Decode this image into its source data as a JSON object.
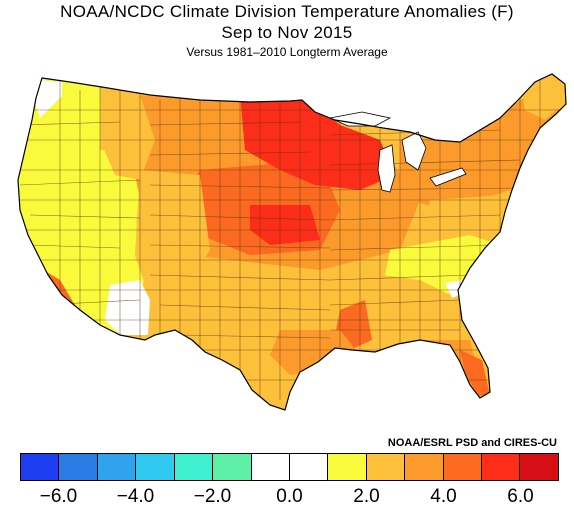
{
  "title": {
    "line1": "NOAA/NCDC Climate Division Temperature Anomalies (F)",
    "line2": "Sep to Nov 2015",
    "line3": "Versus 1981–2010 Longterm Average"
  },
  "credit": "NOAA/ESRL PSD and CIRES-CU",
  "legend": {
    "colors": [
      "#1d3ef0",
      "#2b7be6",
      "#2fa3ee",
      "#31c9f0",
      "#3ef0d0",
      "#5ff0a8",
      "#ffffff",
      "#ffffff",
      "#fafa3c",
      "#fcc03a",
      "#fc9a2c",
      "#fb6a20",
      "#fc2d19",
      "#d60f16"
    ],
    "tick_labels": [
      "−6.0",
      "−4.0",
      "−2.0",
      "0.0",
      "2.0",
      "4.0",
      "6.0"
    ]
  },
  "map_colors": {
    "yellow": "#fafa3c",
    "light_orange": "#fcc03a",
    "orange": "#fc9a2c",
    "dark_orange": "#fb6a20",
    "red": "#fc2d19",
    "white": "#ffffff",
    "border": "#5a3a10",
    "lake": "#ffffff"
  },
  "regions": [
    {
      "name": "pacific-northwest-coast",
      "tone": "white"
    },
    {
      "name": "pacific-northwest",
      "tone": "yellow"
    },
    {
      "name": "california",
      "tone": "yellow"
    },
    {
      "name": "southern-california-coast",
      "tone": "dark_orange"
    },
    {
      "name": "great-basin",
      "tone": "yellow"
    },
    {
      "name": "arizona-south",
      "tone": "white"
    },
    {
      "name": "northern-rockies",
      "tone": "light_orange"
    },
    {
      "name": "southwest-interior",
      "tone": "light_orange"
    },
    {
      "name": "northern-plains",
      "tone": "orange"
    },
    {
      "name": "upper-midwest",
      "tone": "red"
    },
    {
      "name": "central-plains",
      "tone": "dark_orange"
    },
    {
      "name": "central-midwest",
      "tone": "orange"
    },
    {
      "name": "southern-plains",
      "tone": "light_orange"
    },
    {
      "name": "texas",
      "tone": "light_orange"
    },
    {
      "name": "gulf-coast",
      "tone": "orange"
    },
    {
      "name": "mississippi-hotspot",
      "tone": "dark_orange"
    },
    {
      "name": "southeast",
      "tone": "light_orange"
    },
    {
      "name": "appalachians",
      "tone": "yellow"
    },
    {
      "name": "florida",
      "tone": "orange"
    },
    {
      "name": "florida-peninsula",
      "tone": "dark_orange"
    },
    {
      "name": "mid-atlantic",
      "tone": "light_orange"
    },
    {
      "name": "northeast",
      "tone": "orange"
    },
    {
      "name": "maine",
      "tone": "light_orange"
    },
    {
      "name": "great-lakes-east",
      "tone": "orange"
    }
  ]
}
